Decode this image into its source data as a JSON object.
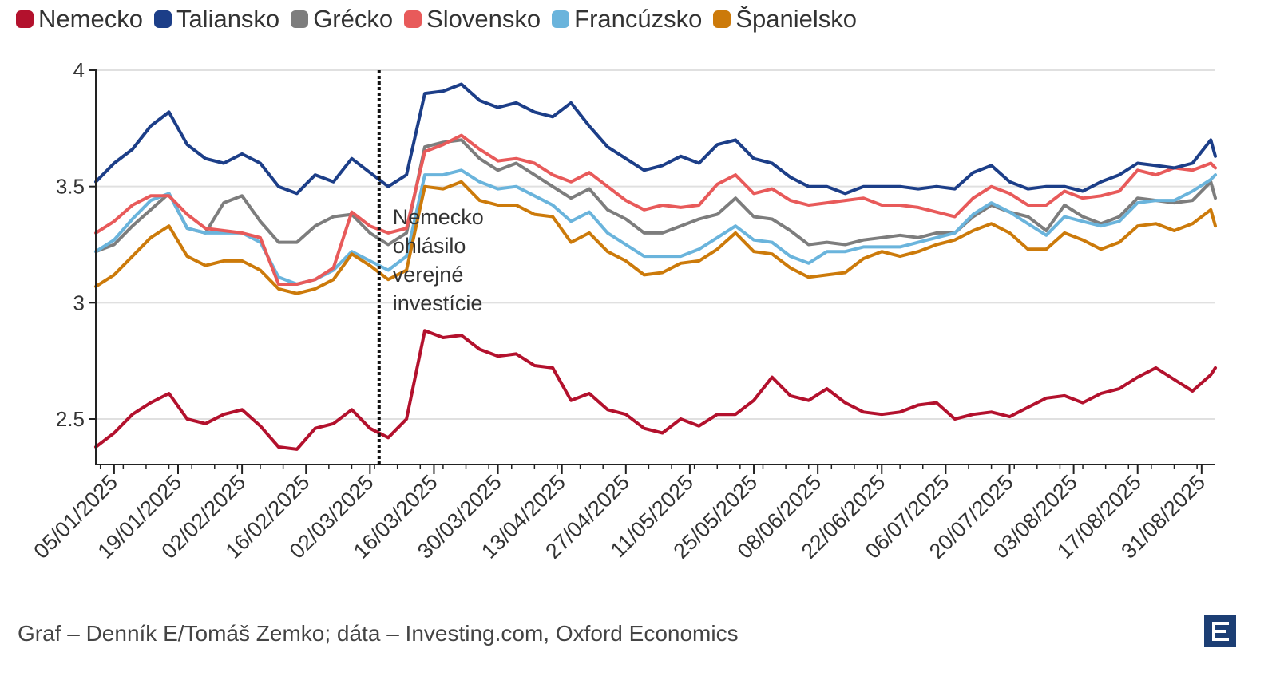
{
  "chart_data": {
    "type": "line",
    "title": "",
    "xlabel": "",
    "ylabel": "",
    "ylim": [
      2.3,
      4.0
    ],
    "yticks": [
      2.5,
      3,
      3.5,
      4
    ],
    "ytick_labels": [
      "2.5",
      "3",
      "3.5",
      "4"
    ],
    "xlim_day": [
      1,
      246
    ],
    "x_tick_labels": [
      "05/01/2025",
      "19/01/2025",
      "02/02/2025",
      "16/02/2025",
      "02/03/2025",
      "16/03/2025",
      "30/03/2025",
      "13/04/2025",
      "27/04/2025",
      "11/05/2025",
      "25/05/2025",
      "08/06/2025",
      "22/06/2025",
      "06/07/2025",
      "20/07/2025",
      "03/08/2025",
      "17/08/2025",
      "31/08/2025"
    ],
    "x_tick_days": [
      5,
      19,
      33,
      47,
      61,
      75,
      89,
      103,
      117,
      131,
      145,
      159,
      173,
      187,
      201,
      215,
      229,
      243
    ],
    "x_day": [
      1,
      5,
      9,
      13,
      17,
      21,
      25,
      29,
      33,
      37,
      41,
      45,
      49,
      53,
      57,
      61,
      65,
      69,
      73,
      77,
      81,
      85,
      89,
      93,
      97,
      101,
      105,
      109,
      113,
      117,
      121,
      125,
      129,
      133,
      137,
      141,
      145,
      149,
      153,
      157,
      161,
      165,
      169,
      173,
      177,
      181,
      185,
      189,
      193,
      197,
      201,
      205,
      209,
      213,
      217,
      221,
      225,
      229,
      233,
      237,
      241,
      245,
      246
    ],
    "series": [
      {
        "name": "Nemecko",
        "color": "#b3112d",
        "values": [
          2.38,
          2.44,
          2.52,
          2.57,
          2.61,
          2.5,
          2.48,
          2.52,
          2.54,
          2.47,
          2.38,
          2.37,
          2.46,
          2.48,
          2.54,
          2.46,
          2.42,
          2.5,
          2.88,
          2.85,
          2.86,
          2.8,
          2.77,
          2.78,
          2.73,
          2.72,
          2.58,
          2.61,
          2.54,
          2.52,
          2.46,
          2.44,
          2.5,
          2.47,
          2.52,
          2.52,
          2.58,
          2.68,
          2.6,
          2.58,
          2.63,
          2.57,
          2.53,
          2.52,
          2.53,
          2.56,
          2.57,
          2.5,
          2.52,
          2.53,
          2.51,
          2.55,
          2.59,
          2.6,
          2.57,
          2.61,
          2.63,
          2.68,
          2.72,
          2.67,
          2.62,
          2.69,
          2.72
        ]
      },
      {
        "name": "Taliansko",
        "color": "#1c3e88",
        "values": [
          3.52,
          3.6,
          3.66,
          3.76,
          3.82,
          3.68,
          3.62,
          3.6,
          3.64,
          3.6,
          3.5,
          3.47,
          3.55,
          3.52,
          3.62,
          3.56,
          3.5,
          3.55,
          3.9,
          3.91,
          3.94,
          3.87,
          3.84,
          3.86,
          3.82,
          3.8,
          3.86,
          3.76,
          3.67,
          3.62,
          3.57,
          3.59,
          3.63,
          3.6,
          3.68,
          3.7,
          3.62,
          3.6,
          3.54,
          3.5,
          3.5,
          3.47,
          3.5,
          3.5,
          3.5,
          3.49,
          3.5,
          3.49,
          3.56,
          3.59,
          3.52,
          3.49,
          3.5,
          3.5,
          3.48,
          3.52,
          3.55,
          3.6,
          3.59,
          3.58,
          3.6,
          3.7,
          3.63
        ]
      },
      {
        "name": "Grécko",
        "color": "#7d7d7d",
        "values": [
          3.22,
          3.25,
          3.33,
          3.4,
          3.47,
          3.32,
          3.3,
          3.43,
          3.46,
          3.35,
          3.26,
          3.26,
          3.33,
          3.37,
          3.38,
          3.3,
          3.25,
          3.3,
          3.67,
          3.69,
          3.7,
          3.62,
          3.57,
          3.6,
          3.55,
          3.5,
          3.45,
          3.49,
          3.4,
          3.36,
          3.3,
          3.3,
          3.33,
          3.36,
          3.38,
          3.45,
          3.37,
          3.36,
          3.31,
          3.25,
          3.26,
          3.25,
          3.27,
          3.28,
          3.29,
          3.28,
          3.3,
          3.3,
          3.37,
          3.42,
          3.39,
          3.37,
          3.31,
          3.42,
          3.37,
          3.34,
          3.37,
          3.45,
          3.44,
          3.43,
          3.44,
          3.52,
          3.45
        ]
      },
      {
        "name": "Slovensko",
        "color": "#e85a5a",
        "values": [
          3.3,
          3.35,
          3.42,
          3.46,
          3.46,
          3.38,
          3.32,
          3.31,
          3.3,
          3.28,
          3.08,
          3.08,
          3.1,
          3.15,
          3.39,
          3.33,
          3.3,
          3.32,
          3.65,
          3.68,
          3.72,
          3.66,
          3.61,
          3.62,
          3.6,
          3.55,
          3.52,
          3.56,
          3.5,
          3.44,
          3.4,
          3.42,
          3.41,
          3.42,
          3.51,
          3.55,
          3.47,
          3.49,
          3.44,
          3.42,
          3.43,
          3.44,
          3.45,
          3.42,
          3.42,
          3.41,
          3.39,
          3.37,
          3.45,
          3.5,
          3.47,
          3.42,
          3.42,
          3.48,
          3.45,
          3.46,
          3.48,
          3.57,
          3.55,
          3.58,
          3.57,
          3.6,
          3.58
        ]
      },
      {
        "name": "Francúzsko",
        "color": "#6ab4dc",
        "values": [
          3.22,
          3.27,
          3.36,
          3.44,
          3.47,
          3.32,
          3.3,
          3.3,
          3.3,
          3.26,
          3.11,
          3.08,
          3.1,
          3.14,
          3.22,
          3.18,
          3.14,
          3.2,
          3.55,
          3.55,
          3.57,
          3.52,
          3.49,
          3.5,
          3.46,
          3.42,
          3.35,
          3.39,
          3.3,
          3.25,
          3.2,
          3.2,
          3.2,
          3.23,
          3.28,
          3.33,
          3.27,
          3.26,
          3.2,
          3.17,
          3.22,
          3.22,
          3.24,
          3.24,
          3.24,
          3.26,
          3.28,
          3.3,
          3.38,
          3.43,
          3.39,
          3.34,
          3.29,
          3.37,
          3.35,
          3.33,
          3.35,
          3.43,
          3.44,
          3.44,
          3.48,
          3.53,
          3.55
        ]
      },
      {
        "name": "Španielsko",
        "color": "#cc7a0a",
        "values": [
          3.07,
          3.12,
          3.2,
          3.28,
          3.33,
          3.2,
          3.16,
          3.18,
          3.18,
          3.14,
          3.06,
          3.04,
          3.06,
          3.1,
          3.21,
          3.16,
          3.1,
          3.14,
          3.5,
          3.49,
          3.52,
          3.44,
          3.42,
          3.42,
          3.38,
          3.37,
          3.26,
          3.3,
          3.22,
          3.18,
          3.12,
          3.13,
          3.17,
          3.18,
          3.23,
          3.3,
          3.22,
          3.21,
          3.15,
          3.11,
          3.12,
          3.13,
          3.19,
          3.22,
          3.2,
          3.22,
          3.25,
          3.27,
          3.31,
          3.34,
          3.3,
          3.23,
          3.23,
          3.3,
          3.27,
          3.23,
          3.26,
          3.33,
          3.34,
          3.31,
          3.34,
          3.4,
          3.33
        ]
      }
    ],
    "event_line_day": 63,
    "annotation": "Nemecko ohlásilo verejné investície",
    "legend_position": "top-left",
    "grid": true
  },
  "source": "Graf – Denník E/Tomáš Zemko; dáta – Investing.com, Oxford Economics",
  "logo_icon": "denník-e-logo-icon"
}
